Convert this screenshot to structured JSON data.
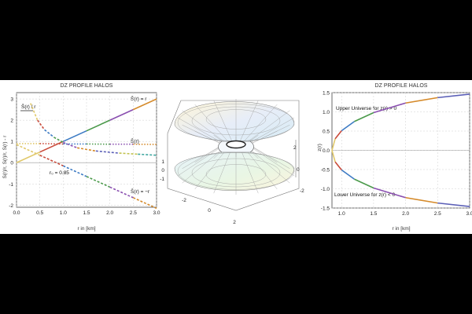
{
  "left_title": "DZ PROFILE HALOS",
  "right_title": "DZ PROFILE HALOS",
  "colors": {
    "background": "#000000",
    "panel": "#ffffff",
    "grid": "#cfcfcf"
  },
  "chart_data": [
    {
      "type": "line",
      "title": "DZ PROFILE HALOS",
      "xlabel": "r in [km]",
      "ylabel": "S(r)/r, S(r)/r, S(r) - r",
      "xlim": [
        0,
        3
      ],
      "ylim": [
        -2.1,
        3.3
      ],
      "grid": true,
      "xticks": [
        "0.0",
        "0.5",
        "1.0",
        "1.5",
        "2.0",
        "2.5",
        "3.0"
      ],
      "yticks": [
        "-2",
        "-1",
        "0",
        "1",
        "2",
        "3"
      ],
      "annotations": [
        "Ŝ(r) / r",
        "Ŝ(r) = r",
        "Ŝ(r)",
        "Ŝ(r) = −r",
        "r₀ = 0.85"
      ],
      "series": [
        {
          "name": "Ŝ(r) = r",
          "x": [
            0,
            0.5,
            1,
            1.5,
            2,
            2.5,
            3
          ],
          "y": [
            0,
            0.5,
            1,
            1.5,
            2,
            2.5,
            3
          ]
        },
        {
          "name": "Ŝ(r) = −r",
          "x": [
            0,
            0.5,
            1,
            1.5,
            2,
            2.5,
            3
          ],
          "y": [
            0.85,
            0.35,
            -0.15,
            -0.65,
            -1.15,
            -1.65,
            -2.15
          ]
        },
        {
          "name": "Ŝ(r) / r",
          "x": [
            0.3,
            0.45,
            0.6,
            0.8,
            1,
            1.3,
            1.7,
            2.2,
            2.6,
            3
          ],
          "y": [
            2.8,
            2.0,
            1.55,
            1.2,
            0.95,
            0.7,
            0.55,
            0.45,
            0.4,
            0.35
          ]
        },
        {
          "name": "Ŝ(r)",
          "x": [
            0,
            0.5,
            1,
            1.5,
            2,
            2.5,
            3
          ],
          "y": [
            0.9,
            0.9,
            0.88,
            0.88,
            0.87,
            0.87,
            0.86
          ]
        }
      ]
    },
    {
      "type": "surface",
      "x_ticks": [
        "-2",
        "0",
        "2"
      ],
      "y_ticks": [
        "-2",
        "0",
        "2"
      ],
      "z_ticks": [
        "1",
        "0",
        "-1"
      ]
    },
    {
      "type": "line",
      "title": "DZ PROFILE HALOS",
      "xlabel": "r in [km]",
      "ylabel": "z(r)",
      "xlim": [
        0.85,
        3
      ],
      "ylim": [
        -1.5,
        1.5
      ],
      "grid": true,
      "xticks": [
        "1.0",
        "1.5",
        "2.0",
        "2.5",
        "3.0"
      ],
      "yticks": [
        "-1.5",
        "-1.0",
        "-0.5",
        "0.0",
        "0.5",
        "1.0",
        "1.5"
      ],
      "annotations": [
        "Upper Universe for z(r) > 0",
        "Lower Universe for z(r) < 0"
      ],
      "series": [
        {
          "name": "z(r)",
          "x": [
            0.85,
            0.9,
            1.0,
            1.2,
            1.5,
            2.0,
            2.5,
            3.0
          ],
          "y": [
            0,
            0.3,
            0.51,
            0.75,
            0.98,
            1.23,
            1.37,
            1.46
          ]
        },
        {
          "name": "-z(r)",
          "x": [
            0.85,
            0.9,
            1.0,
            1.2,
            1.5,
            2.0,
            2.5,
            3.0
          ],
          "y": [
            0,
            -0.3,
            -0.51,
            -0.75,
            -0.98,
            -1.23,
            -1.37,
            -1.46
          ]
        }
      ]
    }
  ]
}
